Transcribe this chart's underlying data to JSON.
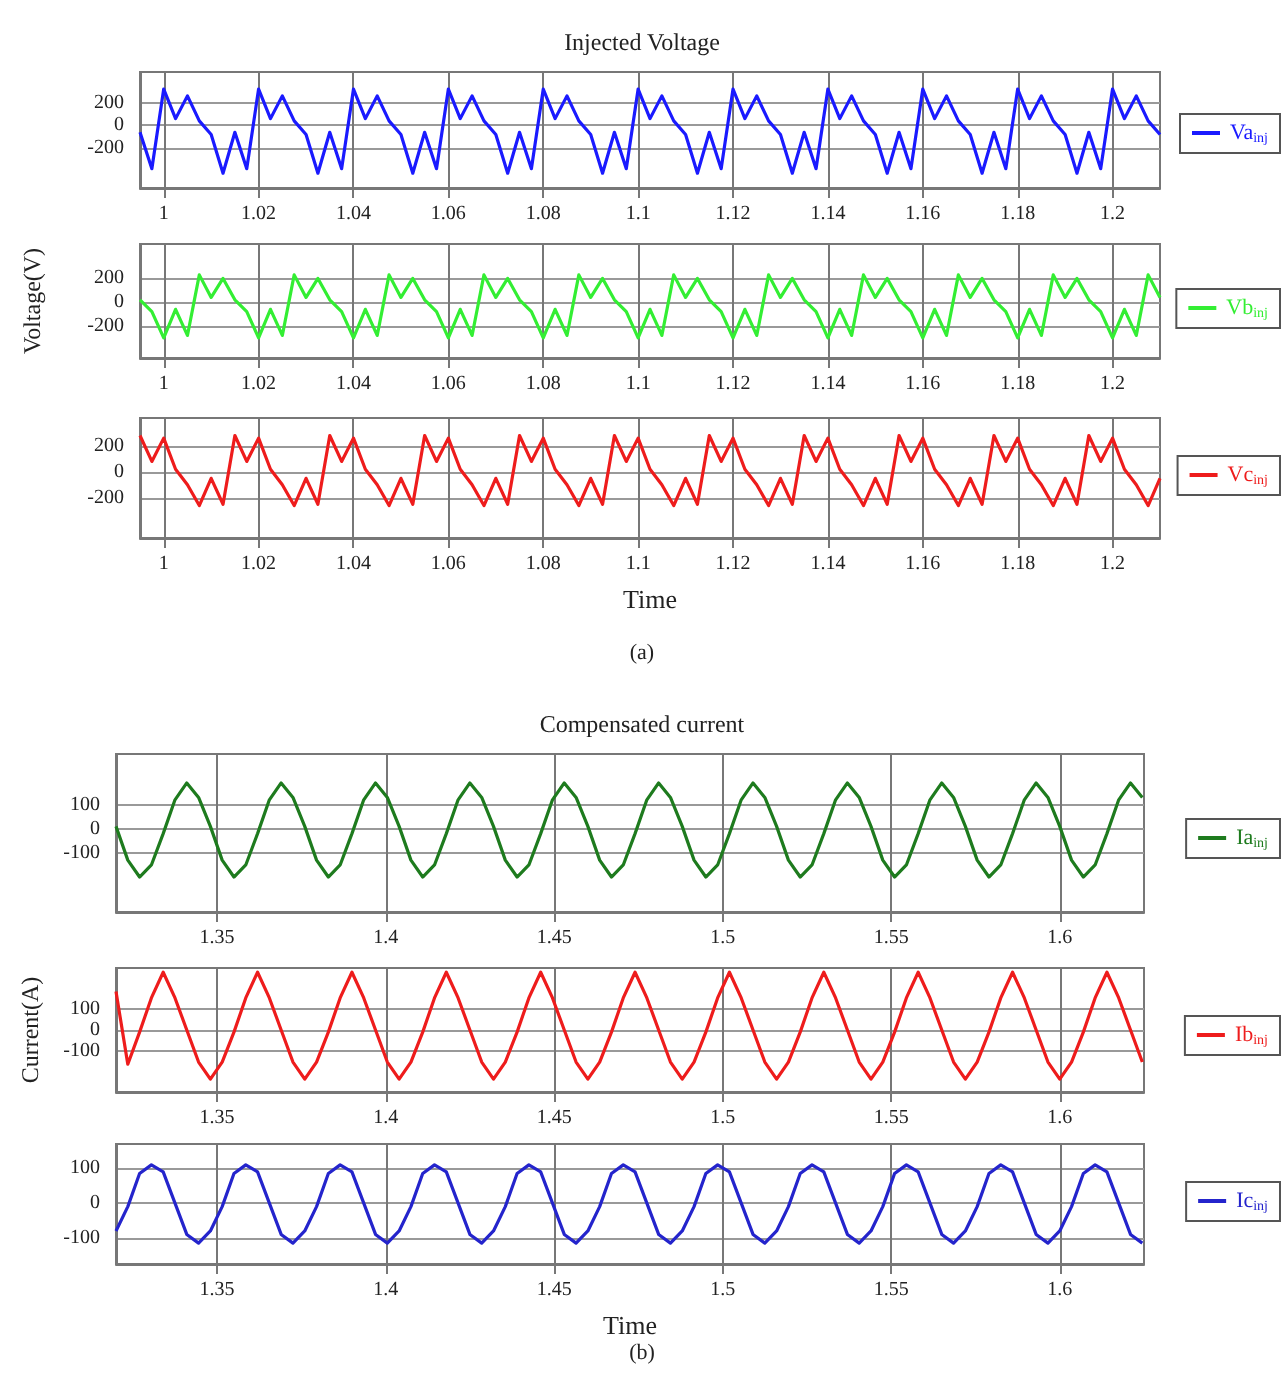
{
  "chart_data": [
    {
      "type": "line",
      "title": "Injected Voltage",
      "x": [
        0.995,
        0.9975,
        1,
        1.0025,
        1.005,
        1.0075,
        1.01,
        1.0125,
        1.015,
        1.0175,
        1.02,
        1.0225,
        1.025,
        1.0275,
        1.03,
        1.0325,
        1.035,
        1.0375,
        1.04,
        1.0425,
        1.045,
        1.0475,
        1.05,
        1.0525,
        1.055,
        1.0575,
        1.06,
        1.0625,
        1.065,
        1.0675,
        1.07,
        1.0725,
        1.075,
        1.0775,
        1.08,
        1.0825,
        1.085,
        1.0875,
        1.09,
        1.0925,
        1.095,
        1.0975,
        1.1,
        1.1025,
        1.105,
        1.1075,
        1.11,
        1.1125,
        1.115,
        1.1175,
        1.12,
        1.1225,
        1.125,
        1.1275,
        1.13,
        1.1325,
        1.135,
        1.1375,
        1.14,
        1.1425,
        1.145,
        1.1475,
        1.15,
        1.1525,
        1.155,
        1.1575,
        1.16,
        1.1625,
        1.165,
        1.1675,
        1.17,
        1.1725,
        1.175,
        1.1775,
        1.18,
        1.1825,
        1.185,
        1.1875,
        1.19,
        1.1925,
        1.195,
        1.1975,
        1.2,
        1.2025,
        1.205,
        1.2075,
        1.21
      ],
      "series": [
        {
          "name": "Va$_{inj}$",
          "color": "#1a1aff",
          "values": [
            -60,
            -380,
            320,
            60,
            260,
            40,
            -80,
            -420,
            -60,
            -380,
            320,
            60,
            260,
            40,
            -80,
            -420,
            -60,
            -380,
            320,
            60,
            260,
            40,
            -80,
            -420,
            -60,
            -380,
            320,
            60,
            260,
            40,
            -80,
            -420,
            -60,
            -380,
            320,
            60,
            260,
            40,
            -80,
            -420,
            -60,
            -380,
            320,
            60,
            260,
            40,
            -80,
            -420,
            -60,
            -380,
            320,
            60,
            260,
            40,
            -80,
            -420,
            -60,
            -380,
            320,
            60,
            260,
            40,
            -80,
            -420,
            -60,
            -380,
            320,
            60,
            260,
            40,
            -80,
            -420,
            -60,
            -380,
            320,
            60,
            260,
            40,
            -80,
            -420,
            -60,
            -380,
            320,
            60,
            260,
            40,
            -80
          ]
        }
      ],
      "xlim": [
        0.995,
        1.21
      ],
      "xticks": [
        1,
        1.02,
        1.04,
        1.06,
        1.08,
        1.1,
        1.12,
        1.14,
        1.16,
        1.18,
        1.2
      ],
      "ylim": [
        -550,
        470
      ],
      "yticks": [
        -200,
        0,
        200
      ],
      "grid": true,
      "legend": "right",
      "marker": "none",
      "line_style": "solid"
    },
    {
      "type": "line",
      "ylabel": "Voltage(V)",
      "x": [
        0.995,
        0.9975,
        1,
        1.0025,
        1.005,
        1.0075,
        1.01,
        1.0125,
        1.015,
        1.0175,
        1.02,
        1.0225,
        1.025,
        1.0275,
        1.03,
        1.0325,
        1.035,
        1.0375,
        1.04,
        1.0425,
        1.045,
        1.0475,
        1.05,
        1.0525,
        1.055,
        1.0575,
        1.06,
        1.0625,
        1.065,
        1.0675,
        1.07,
        1.0725,
        1.075,
        1.0775,
        1.08,
        1.0825,
        1.085,
        1.0875,
        1.09,
        1.0925,
        1.095,
        1.0975,
        1.1,
        1.1025,
        1.105,
        1.1075,
        1.11,
        1.1125,
        1.115,
        1.1175,
        1.12,
        1.1225,
        1.125,
        1.1275,
        1.13,
        1.1325,
        1.135,
        1.1375,
        1.14,
        1.1425,
        1.145,
        1.1475,
        1.15,
        1.1525,
        1.155,
        1.1575,
        1.16,
        1.1625,
        1.165,
        1.1675,
        1.17,
        1.1725,
        1.175,
        1.1775,
        1.18,
        1.1825,
        1.185,
        1.1875,
        1.19,
        1.1925,
        1.195,
        1.1975,
        1.2,
        1.2025,
        1.205,
        1.2075,
        1.21
      ],
      "series": [
        {
          "name": "Vb$_{inj}$",
          "color": "#33ee33",
          "values": [
            20,
            -80,
            -300,
            -60,
            -280,
            230,
            40,
            200,
            20,
            -80,
            -300,
            -60,
            -280,
            230,
            40,
            200,
            20,
            -80,
            -300,
            -60,
            -280,
            230,
            40,
            200,
            20,
            -80,
            -300,
            -60,
            -280,
            230,
            40,
            200,
            20,
            -80,
            -300,
            -60,
            -280,
            230,
            40,
            200,
            20,
            -80,
            -300,
            -60,
            -280,
            230,
            40,
            200,
            20,
            -80,
            -300,
            -60,
            -280,
            230,
            40,
            200,
            20,
            -80,
            -300,
            -60,
            -280,
            230,
            40,
            200,
            20,
            -80,
            -300,
            -60,
            -280,
            230,
            40,
            200,
            20,
            -80,
            -300,
            -60,
            -280,
            230,
            40,
            200,
            20,
            -80,
            -300,
            -60,
            -280,
            230,
            40
          ]
        }
      ],
      "xlim": [
        0.995,
        1.21
      ],
      "xticks": [
        1,
        1.02,
        1.04,
        1.06,
        1.08,
        1.1,
        1.12,
        1.14,
        1.16,
        1.18,
        1.2
      ],
      "ylim": [
        -470,
        490
      ],
      "yticks": [
        -200,
        0,
        200
      ],
      "grid": true,
      "legend": "right",
      "marker": "none",
      "line_style": "solid"
    },
    {
      "type": "line",
      "xlabel": "Time",
      "annotations": [
        "(a)"
      ],
      "x": [
        0.995,
        0.9975,
        1,
        1.0025,
        1.005,
        1.0075,
        1.01,
        1.0125,
        1.015,
        1.0175,
        1.02,
        1.0225,
        1.025,
        1.0275,
        1.03,
        1.0325,
        1.035,
        1.0375,
        1.04,
        1.0425,
        1.045,
        1.0475,
        1.05,
        1.0525,
        1.055,
        1.0575,
        1.06,
        1.0625,
        1.065,
        1.0675,
        1.07,
        1.0725,
        1.075,
        1.0775,
        1.08,
        1.0825,
        1.085,
        1.0875,
        1.09,
        1.0925,
        1.095,
        1.0975,
        1.1,
        1.1025,
        1.105,
        1.1075,
        1.11,
        1.1125,
        1.115,
        1.1175,
        1.12,
        1.1225,
        1.125,
        1.1275,
        1.13,
        1.1325,
        1.135,
        1.1375,
        1.14,
        1.1425,
        1.145,
        1.1475,
        1.15,
        1.1525,
        1.155,
        1.1575,
        1.16,
        1.1625,
        1.165,
        1.1675,
        1.17,
        1.1725,
        1.175,
        1.1775,
        1.18,
        1.1825,
        1.185,
        1.1875,
        1.19,
        1.1925,
        1.195,
        1.1975,
        1.2,
        1.2025,
        1.205,
        1.2075,
        1.21
      ],
      "series": [
        {
          "name": "Vc$_{inj}$",
          "color": "#ee1c1c",
          "values": [
            280,
            80,
            260,
            20,
            -100,
            -260,
            -50,
            -250,
            280,
            80,
            260,
            20,
            -100,
            -260,
            -50,
            -250,
            280,
            80,
            260,
            20,
            -100,
            -260,
            -50,
            -250,
            280,
            80,
            260,
            20,
            -100,
            -260,
            -50,
            -250,
            280,
            80,
            260,
            20,
            -100,
            -260,
            -50,
            -250,
            280,
            80,
            260,
            20,
            -100,
            -260,
            -50,
            -250,
            280,
            80,
            260,
            20,
            -100,
            -260,
            -50,
            -250,
            280,
            80,
            260,
            20,
            -100,
            -260,
            -50,
            -250,
            280,
            80,
            260,
            20,
            -100,
            -260,
            -50,
            -250,
            280,
            80,
            260,
            20,
            -100,
            -260,
            -50,
            -250,
            280,
            80,
            260,
            20,
            -100,
            -260,
            -50
          ]
        }
      ],
      "xlim": [
        0.995,
        1.21
      ],
      "xticks": [
        1,
        1.02,
        1.04,
        1.06,
        1.08,
        1.1,
        1.12,
        1.14,
        1.16,
        1.18,
        1.2
      ],
      "ylim": [
        -510,
        415
      ],
      "yticks": [
        -200,
        0,
        200
      ],
      "grid": true,
      "legend": "right",
      "marker": "none",
      "line_style": "solid"
    },
    {
      "type": "line",
      "title": "Compensated current",
      "x": [
        1.32,
        1.3235,
        1.327,
        1.3305,
        1.334,
        1.3375,
        1.341,
        1.3445,
        1.348,
        1.3515,
        1.355,
        1.3585,
        1.362,
        1.3655,
        1.369,
        1.3725,
        1.376,
        1.3795,
        1.383,
        1.3865,
        1.39,
        1.3935,
        1.397,
        1.4005,
        1.404,
        1.4075,
        1.411,
        1.4145,
        1.418,
        1.4215,
        1.425,
        1.4285,
        1.432,
        1.4355,
        1.439,
        1.4425,
        1.446,
        1.4495,
        1.453,
        1.4565,
        1.46,
        1.4635,
        1.467,
        1.4705,
        1.474,
        1.4775,
        1.481,
        1.4845,
        1.488,
        1.4915,
        1.495,
        1.4985,
        1.502,
        1.5055,
        1.509,
        1.5125,
        1.516,
        1.5195,
        1.523,
        1.5265,
        1.53,
        1.5335,
        1.537,
        1.5405,
        1.544,
        1.5475,
        1.551,
        1.5545,
        1.558,
        1.5615,
        1.565,
        1.5685,
        1.572,
        1.5755,
        1.579,
        1.5825,
        1.586,
        1.5895,
        1.593,
        1.5965,
        1.6,
        1.6035,
        1.607,
        1.6105,
        1.614,
        1.6175,
        1.621,
        1.6245
      ],
      "series": [
        {
          "name": "Ia$_{inj}$",
          "color": "#1e7b1e",
          "values": [
            10,
            -130,
            -200,
            -150,
            -20,
            120,
            190,
            130,
            10,
            -130,
            -200,
            -150,
            -20,
            120,
            190,
            130,
            10,
            -130,
            -200,
            -150,
            -20,
            120,
            190,
            130,
            10,
            -130,
            -200,
            -150,
            -20,
            120,
            190,
            130,
            10,
            -130,
            -200,
            -150,
            -20,
            120,
            190,
            130,
            10,
            -130,
            -200,
            -150,
            -20,
            120,
            190,
            130,
            10,
            -130,
            -200,
            -150,
            -20,
            120,
            190,
            130,
            10,
            -130,
            -200,
            -150,
            -20,
            120,
            190,
            130,
            10,
            -130,
            -200,
            -150,
            -20,
            120,
            190,
            130,
            10,
            -130,
            -200,
            -150,
            -20,
            120,
            190,
            130,
            10,
            -130,
            -200,
            -150,
            -20,
            120,
            190,
            130
          ]
        }
      ],
      "xlim": [
        1.32,
        1.625
      ],
      "xticks": [
        1.35,
        1.4,
        1.45,
        1.5,
        1.55,
        1.6
      ],
      "ylim": [
        -345,
        310
      ],
      "yticks": [
        -100,
        0,
        100
      ],
      "grid": true,
      "legend": "right",
      "marker": "none",
      "line_style": "solid"
    },
    {
      "type": "line",
      "ylabel": "Current(A)",
      "x": [
        1.32,
        1.3235,
        1.327,
        1.3305,
        1.334,
        1.3375,
        1.341,
        1.3445,
        1.348,
        1.3515,
        1.355,
        1.3585,
        1.362,
        1.3655,
        1.369,
        1.3725,
        1.376,
        1.3795,
        1.383,
        1.3865,
        1.39,
        1.3935,
        1.397,
        1.4005,
        1.404,
        1.4075,
        1.411,
        1.4145,
        1.418,
        1.4215,
        1.425,
        1.4285,
        1.432,
        1.4355,
        1.439,
        1.4425,
        1.446,
        1.4495,
        1.453,
        1.4565,
        1.46,
        1.4635,
        1.467,
        1.4705,
        1.474,
        1.4775,
        1.481,
        1.4845,
        1.488,
        1.4915,
        1.495,
        1.4985,
        1.502,
        1.5055,
        1.509,
        1.5125,
        1.516,
        1.5195,
        1.523,
        1.5265,
        1.53,
        1.5335,
        1.537,
        1.5405,
        1.544,
        1.5475,
        1.551,
        1.5545,
        1.558,
        1.5615,
        1.565,
        1.5685,
        1.572,
        1.5755,
        1.579,
        1.5825,
        1.586,
        1.5895,
        1.593,
        1.5965,
        1.6,
        1.6035,
        1.607,
        1.6105,
        1.614,
        1.6175,
        1.621,
        1.6245
      ],
      "series": [
        {
          "name": "Ib$_{inj}$",
          "color": "#ee1c1c",
          "values": [
            180,
            -160,
            -10,
            150,
            270,
            150,
            0,
            -150,
            -230,
            -150,
            -10,
            150,
            270,
            150,
            0,
            -150,
            -230,
            -150,
            -10,
            150,
            270,
            150,
            0,
            -150,
            -230,
            -150,
            -10,
            150,
            270,
            150,
            0,
            -150,
            -230,
            -150,
            -10,
            150,
            270,
            150,
            0,
            -150,
            -230,
            -150,
            -10,
            150,
            270,
            150,
            0,
            -150,
            -230,
            -150,
            -10,
            150,
            270,
            150,
            0,
            -150,
            -230,
            -150,
            -10,
            150,
            270,
            150,
            0,
            -150,
            -230,
            -150,
            -10,
            150,
            270,
            150,
            0,
            -150,
            -230,
            -150,
            -10,
            150,
            270,
            150,
            0,
            -150,
            -230,
            -150,
            -10,
            150,
            270,
            150,
            0,
            -150
          ]
        }
      ],
      "xlim": [
        1.32,
        1.625
      ],
      "xticks": [
        1.35,
        1.4,
        1.45,
        1.5,
        1.55,
        1.6
      ],
      "ylim": [
        -290,
        290
      ],
      "yticks": [
        -100,
        0,
        100
      ],
      "grid": true,
      "legend": "right",
      "marker": "none",
      "line_style": "solid"
    },
    {
      "type": "line",
      "xlabel": "Time",
      "annotations": [
        "(b)"
      ],
      "x": [
        1.32,
        1.3235,
        1.327,
        1.3305,
        1.334,
        1.3375,
        1.341,
        1.3445,
        1.348,
        1.3515,
        1.355,
        1.3585,
        1.362,
        1.3655,
        1.369,
        1.3725,
        1.376,
        1.3795,
        1.383,
        1.3865,
        1.39,
        1.3935,
        1.397,
        1.4005,
        1.404,
        1.4075,
        1.411,
        1.4145,
        1.418,
        1.4215,
        1.425,
        1.4285,
        1.432,
        1.4355,
        1.439,
        1.4425,
        1.446,
        1.4495,
        1.453,
        1.4565,
        1.46,
        1.4635,
        1.467,
        1.4705,
        1.474,
        1.4775,
        1.481,
        1.4845,
        1.488,
        1.4915,
        1.495,
        1.4985,
        1.502,
        1.5055,
        1.509,
        1.5125,
        1.516,
        1.5195,
        1.523,
        1.5265,
        1.53,
        1.5335,
        1.537,
        1.5405,
        1.544,
        1.5475,
        1.551,
        1.5545,
        1.558,
        1.5615,
        1.565,
        1.5685,
        1.572,
        1.5755,
        1.579,
        1.5825,
        1.586,
        1.5895,
        1.593,
        1.5965,
        1.6,
        1.6035,
        1.607,
        1.6105,
        1.614,
        1.6175,
        1.621,
        1.6245
      ],
      "series": [
        {
          "name": "Ic$_{inj}$",
          "color": "#2424cc",
          "values": [
            -80,
            -10,
            85,
            110,
            90,
            0,
            -90,
            -115,
            -80,
            -10,
            85,
            110,
            90,
            0,
            -90,
            -115,
            -80,
            -10,
            85,
            110,
            90,
            0,
            -90,
            -115,
            -80,
            -10,
            85,
            110,
            90,
            0,
            -90,
            -115,
            -80,
            -10,
            85,
            110,
            90,
            0,
            -90,
            -115,
            -80,
            -10,
            85,
            110,
            90,
            0,
            -90,
            -115,
            -80,
            -10,
            85,
            110,
            90,
            0,
            -90,
            -115,
            -80,
            -10,
            85,
            110,
            90,
            0,
            -90,
            -115,
            -80,
            -10,
            85,
            110,
            90,
            0,
            -90,
            -115,
            -80,
            -10,
            85,
            110,
            90,
            0,
            -90,
            -115,
            -80,
            -10,
            85,
            110,
            90,
            0,
            -90,
            -115
          ]
        }
      ],
      "xlim": [
        1.32,
        1.625
      ],
      "xticks": [
        1.35,
        1.4,
        1.45,
        1.5,
        1.55,
        1.6
      ],
      "ylim": [
        -175,
        170
      ],
      "yticks": [
        -100,
        0,
        100
      ],
      "grid": true,
      "legend": "right",
      "marker": "none",
      "line_style": "solid"
    }
  ]
}
